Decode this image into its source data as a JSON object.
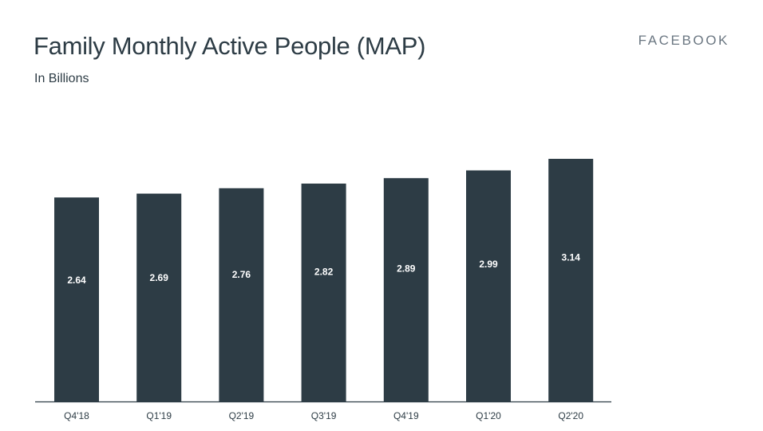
{
  "header": {
    "title": "Family Monthly Active People (MAP)",
    "subtitle": "In Billions",
    "brand": "FACEBOOK"
  },
  "colors": {
    "bar": "#2d3c45",
    "bar_label": "#ffffff",
    "axis": "#2d3c45",
    "text": "#2d3c45",
    "brand": "#6b7782"
  },
  "chart_data": {
    "type": "bar",
    "title": "Family Monthly Active People (MAP)",
    "subtitle": "In Billions",
    "categories": [
      "Q4'18",
      "Q1'19",
      "Q2'19",
      "Q3'19",
      "Q4'19",
      "Q1'20",
      "Q2'20"
    ],
    "series": [
      {
        "values": [
          2.64,
          2.69,
          2.76,
          2.82,
          2.89,
          2.99,
          3.14
        ]
      }
    ],
    "value_labels": [
      "2.64",
      "2.69",
      "2.76",
      "2.82",
      "2.89",
      "2.99",
      "3.14"
    ],
    "ylim": [
      0,
      3.14
    ],
    "grid": false,
    "legend": "none"
  }
}
